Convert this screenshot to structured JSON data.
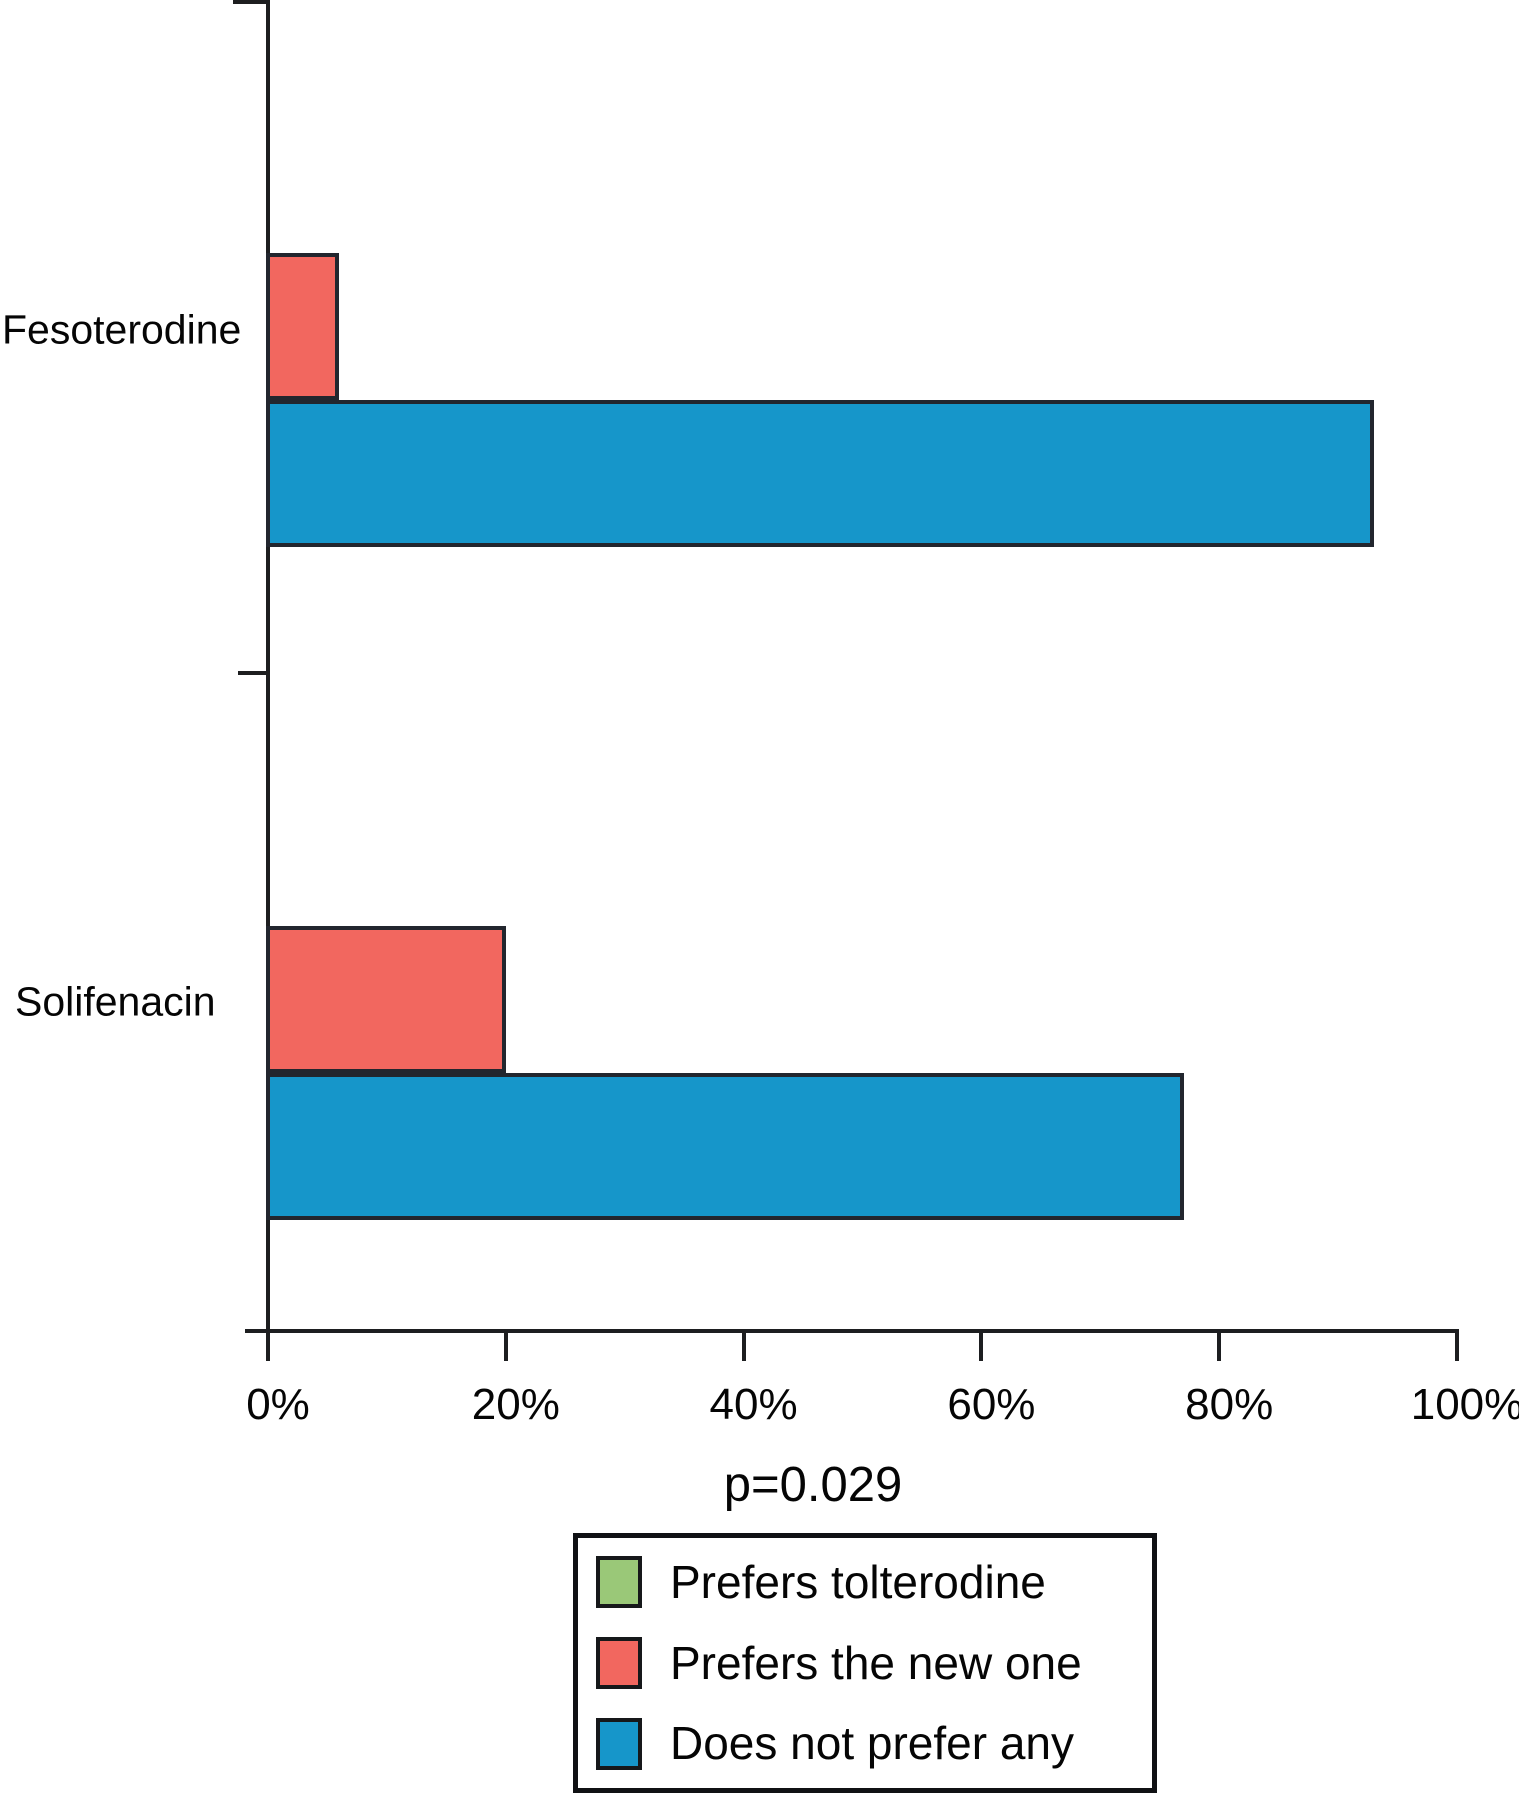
{
  "chart_data": {
    "type": "bar",
    "orientation": "horizontal",
    "title": "",
    "xlabel": "",
    "ylabel": "",
    "categories": [
      "Fesoterodine",
      "Solifenacin"
    ],
    "series": [
      {
        "name": "Prefers tolterodine",
        "color": "#9ac878",
        "values": [
          0,
          0
        ]
      },
      {
        "name": "Prefers the new one",
        "color": "#f2675f",
        "values": [
          6,
          20
        ]
      },
      {
        "name": "Does not prefer any",
        "color": "#1696ca",
        "values": [
          93,
          77
        ]
      }
    ],
    "x_axis": {
      "range": [
        0,
        100
      ],
      "ticks": [
        0,
        20,
        40,
        60,
        80,
        100
      ],
      "tick_labels": [
        "0%",
        "20%",
        "40%",
        "60%",
        "80%",
        "100%"
      ]
    },
    "annotation": "p=0.029",
    "legend_position": "bottom",
    "grid": false
  }
}
